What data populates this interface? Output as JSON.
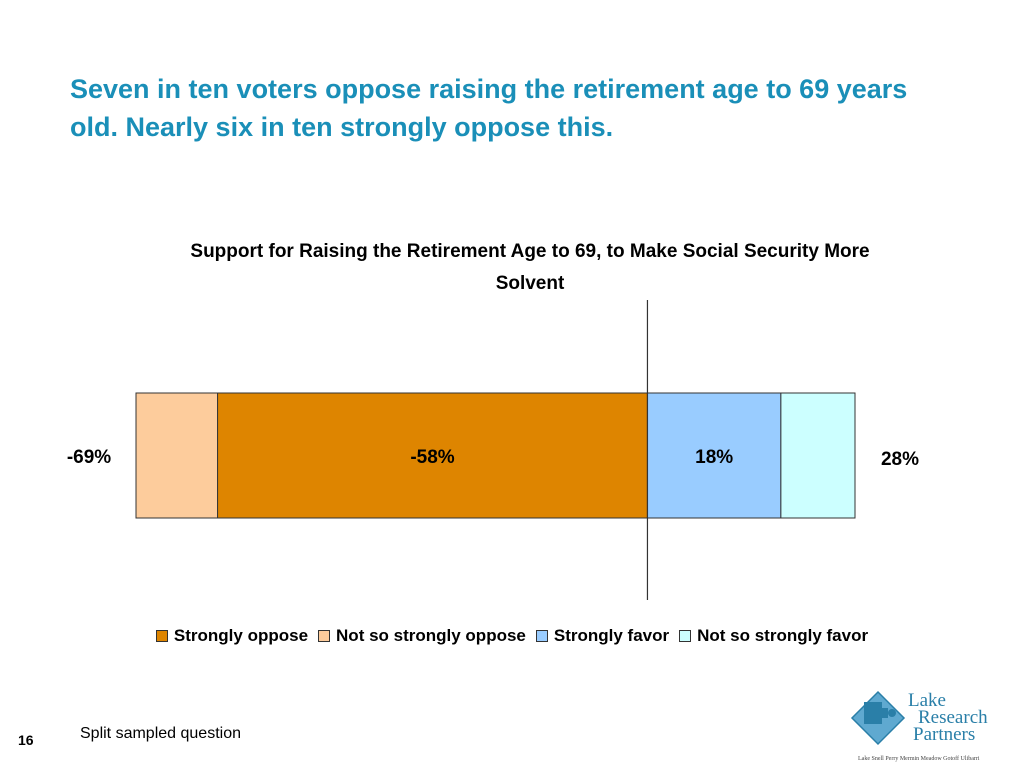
{
  "headline": "Seven in ten voters oppose raising the retirement age to 69 years old. Nearly six in ten strongly oppose this.",
  "chart_data": {
    "type": "bar",
    "orientation": "horizontal-diverging-stacked",
    "title": "Support for Raising the Retirement Age to 69, to Make Social Security More Solvent",
    "categories": [
      ""
    ],
    "series": [
      {
        "name": "Strongly oppose",
        "value": -58,
        "color": "#de8500",
        "label": "-58%"
      },
      {
        "name": "Not so strongly oppose",
        "value": -11,
        "color": "#fdcc9c",
        "label": ""
      },
      {
        "name": "Strongly favor",
        "value": 18,
        "color": "#99ccff",
        "label": "18%"
      },
      {
        "name": "Not so strongly favor",
        "value": 10,
        "color": "#ccffff",
        "label": ""
      }
    ],
    "totals": {
      "oppose": "-69%",
      "favor": "28%"
    },
    "xlim": [
      -69,
      28
    ],
    "legend_position": "bottom"
  },
  "footer": {
    "page_number": "16",
    "note": "Split sampled question"
  },
  "logo": {
    "line1": "Lake",
    "line2": "Research",
    "line3": "Partners",
    "names": "Lake  Snell  Perry  Mermin  Meadow  Gotoff  Ulibarri"
  }
}
